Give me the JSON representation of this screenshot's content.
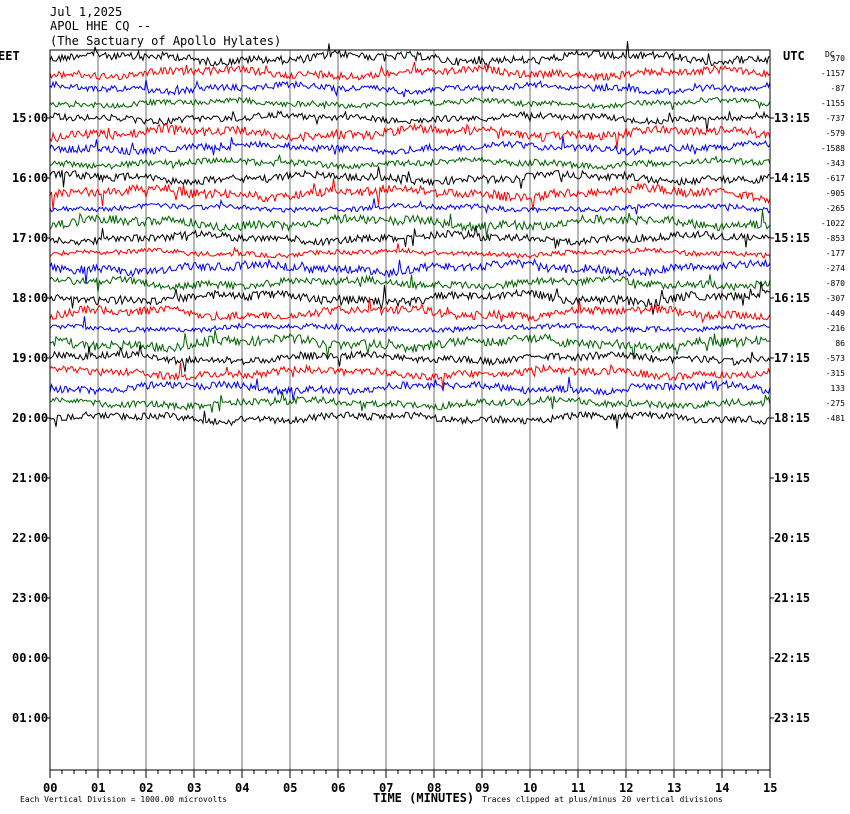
{
  "header": {
    "date": "Jul 1,2025",
    "station": "APOL HHE CQ --",
    "site": "(The Sactuary of Apollo Hylates)"
  },
  "chart_data": {
    "type": "line",
    "title": "Jul 1,2025",
    "left_axis_label": "EET",
    "right_axis_label": "UTC",
    "dc_label": "DC",
    "xlabel": "TIME (MINUTES)",
    "x_ticks": [
      "00",
      "01",
      "02",
      "03",
      "04",
      "05",
      "06",
      "07",
      "08",
      "09",
      "10",
      "11",
      "12",
      "13",
      "14",
      "15"
    ],
    "xlim": [
      0,
      15
    ],
    "left_hour_labels": [
      "15:00",
      "16:00",
      "17:00",
      "18:00",
      "19:00",
      "20:00",
      "21:00",
      "22:00",
      "23:00",
      "00:00",
      "01:00"
    ],
    "right_hour_labels": [
      "13:15",
      "14:15",
      "15:15",
      "16:15",
      "17:15",
      "18:15",
      "19:15",
      "20:15",
      "21:15",
      "22:15",
      "23:15"
    ],
    "trace_colors": [
      "#000000",
      "#ff0000",
      "#0000ff",
      "#006400"
    ],
    "trace_count": 25,
    "dc_offsets": [
      "370",
      "-1157",
      "-87",
      "-1155",
      "-737",
      "-579",
      "-1588",
      "-343",
      "-617",
      "-905",
      "-265",
      "-1022",
      "-853",
      "-177",
      "-274",
      "-870",
      "-307",
      "-449",
      "-216",
      "86",
      "-573",
      "-315",
      "133",
      "-275",
      "-481"
    ],
    "footer_left": "Each Vertical Division = 1000.00 microvolts",
    "footer_right": "Traces clipped at plus/minus 20 vertical divisions",
    "grid": "vertical-minutes"
  }
}
